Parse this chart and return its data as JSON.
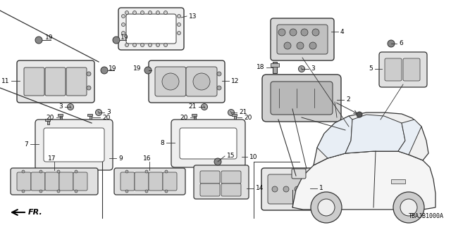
{
  "background_color": "#ffffff",
  "diagram_code": "TBAJB1000A",
  "line_color": "#333333",
  "figsize": [
    6.4,
    3.2
  ],
  "dpi": 100
}
